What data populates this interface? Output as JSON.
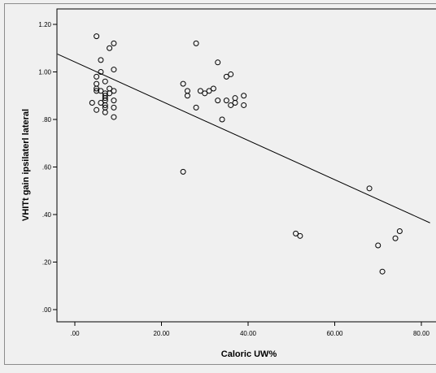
{
  "chart_data": {
    "type": "scatter",
    "xlabel": "Caloric UW%",
    "ylabel": "VHITt gain ipsilaterl lateral",
    "xlim": [
      -4,
      82
    ],
    "ylim": [
      -0.02,
      1.26
    ],
    "x_ticks": [
      0,
      20,
      40,
      60,
      80
    ],
    "x_tick_labels": [
      ".00",
      "20.00",
      "40.00",
      "60.00",
      "80.00"
    ],
    "y_ticks": [
      0,
      0.2,
      0.4,
      0.6,
      0.8,
      1.0,
      1.2
    ],
    "y_tick_labels": [
      ".00",
      ".20",
      ".40",
      ".60",
      ".80",
      "1.00",
      "1.20"
    ],
    "grid": false,
    "legend": "none",
    "colors": {
      "plot_bg": "#f0f0f0",
      "axis": "#000000",
      "marker": "#000000",
      "fit_line": "#000000"
    },
    "fit_line": {
      "x": [
        -4,
        82
      ],
      "y": [
        1.075,
        0.365
      ]
    },
    "points": [
      {
        "x": 5,
        "y": 1.15
      },
      {
        "x": 8,
        "y": 1.1
      },
      {
        "x": 9,
        "y": 1.12
      },
      {
        "x": 6,
        "y": 1.05
      },
      {
        "x": 9,
        "y": 1.01
      },
      {
        "x": 6,
        "y": 1.0
      },
      {
        "x": 5,
        "y": 0.98
      },
      {
        "x": 7,
        "y": 0.96
      },
      {
        "x": 5,
        "y": 0.95
      },
      {
        "x": 5,
        "y": 0.93
      },
      {
        "x": 8,
        "y": 0.93
      },
      {
        "x": 5,
        "y": 0.92
      },
      {
        "x": 6,
        "y": 0.92
      },
      {
        "x": 9,
        "y": 0.92
      },
      {
        "x": 7,
        "y": 0.91
      },
      {
        "x": 8,
        "y": 0.91
      },
      {
        "x": 7,
        "y": 0.9
      },
      {
        "x": 7,
        "y": 0.89
      },
      {
        "x": 9,
        "y": 0.88
      },
      {
        "x": 7,
        "y": 0.88
      },
      {
        "x": 4,
        "y": 0.87
      },
      {
        "x": 6,
        "y": 0.87
      },
      {
        "x": 7,
        "y": 0.86
      },
      {
        "x": 7,
        "y": 0.85
      },
      {
        "x": 9,
        "y": 0.85
      },
      {
        "x": 5,
        "y": 0.84
      },
      {
        "x": 7,
        "y": 0.83
      },
      {
        "x": 9,
        "y": 0.81
      },
      {
        "x": 28,
        "y": 1.12
      },
      {
        "x": 33,
        "y": 1.04
      },
      {
        "x": 36,
        "y": 0.99
      },
      {
        "x": 35,
        "y": 0.98
      },
      {
        "x": 25,
        "y": 0.95
      },
      {
        "x": 32,
        "y": 0.93
      },
      {
        "x": 29,
        "y": 0.92
      },
      {
        "x": 26,
        "y": 0.92
      },
      {
        "x": 31,
        "y": 0.92
      },
      {
        "x": 30,
        "y": 0.91
      },
      {
        "x": 26,
        "y": 0.9
      },
      {
        "x": 39,
        "y": 0.9
      },
      {
        "x": 37,
        "y": 0.89
      },
      {
        "x": 33,
        "y": 0.88
      },
      {
        "x": 35,
        "y": 0.88
      },
      {
        "x": 37,
        "y": 0.87
      },
      {
        "x": 36,
        "y": 0.86
      },
      {
        "x": 39,
        "y": 0.86
      },
      {
        "x": 28,
        "y": 0.85
      },
      {
        "x": 34,
        "y": 0.8
      },
      {
        "x": 25,
        "y": 0.58
      },
      {
        "x": 51,
        "y": 0.32
      },
      {
        "x": 52,
        "y": 0.31
      },
      {
        "x": 68,
        "y": 0.51
      },
      {
        "x": 75,
        "y": 0.33
      },
      {
        "x": 74,
        "y": 0.3
      },
      {
        "x": 70,
        "y": 0.27
      },
      {
        "x": 71,
        "y": 0.16
      }
    ]
  }
}
